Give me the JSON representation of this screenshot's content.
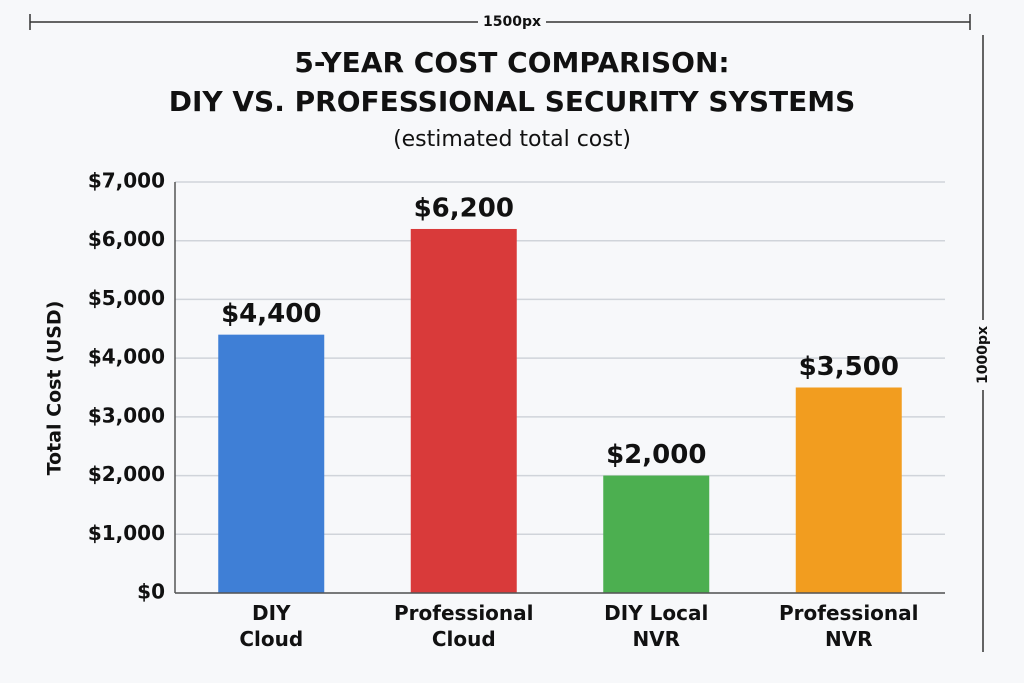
{
  "chart_data": {
    "type": "bar",
    "title": "5-YEAR COST COMPARISON:",
    "title_line2": "DIY VS. PROFESSIONAL SECURITY SYSTEMS",
    "subtitle": "(estimated total cost)",
    "y_label": "Total Cost (USD)",
    "annotations": [
      "1500px",
      "1000px"
    ],
    "categories": [
      "DIY\nCloud",
      "Professional\nCloud",
      "DIY Local\nNVR",
      "Professional\nNVR"
    ],
    "values": [
      4400,
      6200,
      2000,
      3500
    ],
    "value_labels": [
      "$4,400",
      "$6,200",
      "$2,000",
      "$3,500"
    ],
    "colors": [
      "#3f7fd6",
      "#d93a3a",
      "#4caf50",
      "#f29d1f"
    ],
    "ylim": [
      0,
      7000
    ],
    "yticks": [
      {
        "value": 0,
        "label": "$0"
      },
      {
        "value": 1000,
        "label": "$1,000"
      },
      {
        "value": 2000,
        "label": "$2,000"
      },
      {
        "value": 3000,
        "label": "$3,000"
      },
      {
        "value": 4000,
        "label": "$4,000"
      },
      {
        "value": 5000,
        "label": "$5,000"
      },
      {
        "value": 6000,
        "label": "$6,000"
      },
      {
        "value": 7000,
        "label": "$7,000"
      }
    ],
    "grid": true
  }
}
